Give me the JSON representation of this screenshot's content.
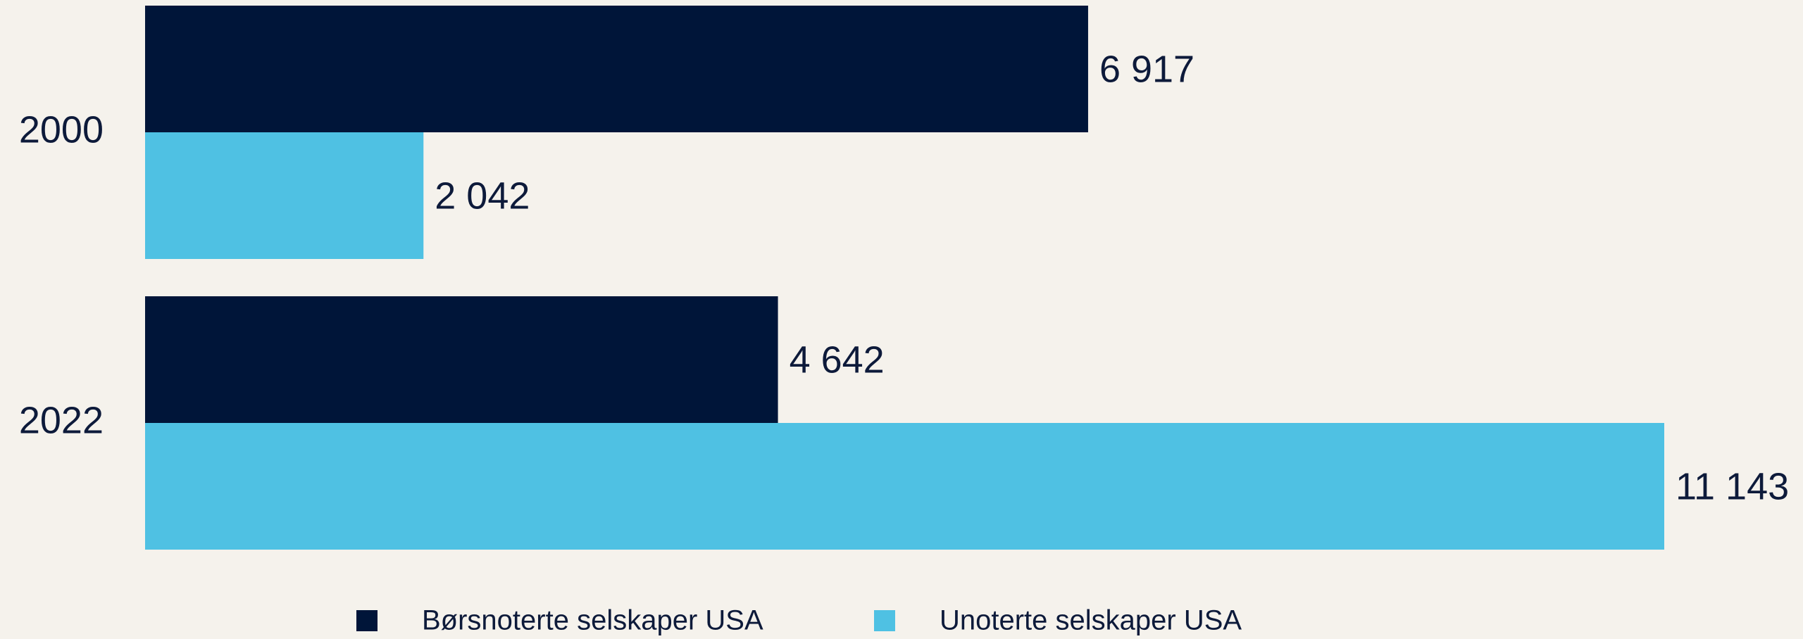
{
  "chart_data": {
    "type": "bar",
    "orientation": "horizontal",
    "categories": [
      "2000",
      "2022"
    ],
    "series": [
      {
        "name": "Børsnoterte selskaper USA",
        "color": "#001539",
        "values": [
          6917,
          4642
        ],
        "value_labels": [
          "6 917",
          "4 642"
        ]
      },
      {
        "name": "Unoterte selskaper USA",
        "color": "#4fc1e3",
        "values": [
          2042,
          11143
        ],
        "value_labels": [
          "2 042",
          "11 143"
        ]
      }
    ],
    "legend": "bottom"
  }
}
